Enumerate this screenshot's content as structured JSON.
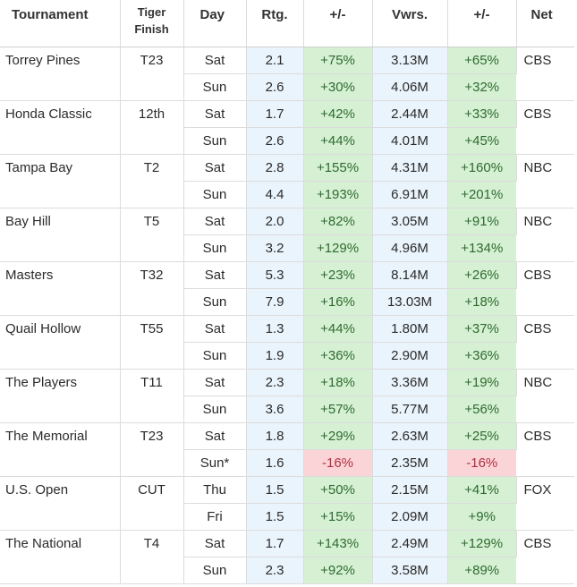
{
  "headers": {
    "tournament": "Tournament",
    "tiger_finish_line1": "Tiger",
    "tiger_finish_line2": "Finish",
    "day": "Day",
    "rating": "Rtg.",
    "rating_change": "+/-",
    "viewers": "Vwrs.",
    "viewers_change": "+/-",
    "network": "Net"
  },
  "tournaments": [
    {
      "name": "Torrey Pines",
      "finish": "T23",
      "net": "CBS",
      "days": [
        {
          "day": "Sat",
          "rating": "2.1",
          "rating_change": "+75%",
          "rating_neg": false,
          "viewers": "3.13M",
          "viewers_change": "+65%",
          "viewers_neg": false
        },
        {
          "day": "Sun",
          "rating": "2.6",
          "rating_change": "+30%",
          "rating_neg": false,
          "viewers": "4.06M",
          "viewers_change": "+32%",
          "viewers_neg": false
        }
      ]
    },
    {
      "name": "Honda Classic",
      "finish": "12th",
      "net": "CBS",
      "days": [
        {
          "day": "Sat",
          "rating": "1.7",
          "rating_change": "+42%",
          "rating_neg": false,
          "viewers": "2.44M",
          "viewers_change": "+33%",
          "viewers_neg": false
        },
        {
          "day": "Sun",
          "rating": "2.6",
          "rating_change": "+44%",
          "rating_neg": false,
          "viewers": "4.01M",
          "viewers_change": "+45%",
          "viewers_neg": false
        }
      ]
    },
    {
      "name": "Tampa Bay",
      "finish": "T2",
      "net": "NBC",
      "days": [
        {
          "day": "Sat",
          "rating": "2.8",
          "rating_change": "+155%",
          "rating_neg": false,
          "viewers": "4.31M",
          "viewers_change": "+160%",
          "viewers_neg": false
        },
        {
          "day": "Sun",
          "rating": "4.4",
          "rating_change": "+193%",
          "rating_neg": false,
          "viewers": "6.91M",
          "viewers_change": "+201%",
          "viewers_neg": false
        }
      ]
    },
    {
      "name": "Bay Hill",
      "finish": "T5",
      "net": "NBC",
      "days": [
        {
          "day": "Sat",
          "rating": "2.0",
          "rating_change": "+82%",
          "rating_neg": false,
          "viewers": "3.05M",
          "viewers_change": "+91%",
          "viewers_neg": false
        },
        {
          "day": "Sun",
          "rating": "3.2",
          "rating_change": "+129%",
          "rating_neg": false,
          "viewers": "4.96M",
          "viewers_change": "+134%",
          "viewers_neg": false
        }
      ]
    },
    {
      "name": "Masters",
      "finish": "T32",
      "net": "CBS",
      "days": [
        {
          "day": "Sat",
          "rating": "5.3",
          "rating_change": "+23%",
          "rating_neg": false,
          "viewers": "8.14M",
          "viewers_change": "+26%",
          "viewers_neg": false
        },
        {
          "day": "Sun",
          "rating": "7.9",
          "rating_change": "+16%",
          "rating_neg": false,
          "viewers": "13.03M",
          "viewers_change": "+18%",
          "viewers_neg": false
        }
      ]
    },
    {
      "name": "Quail Hollow",
      "finish": "T55",
      "net": "CBS",
      "days": [
        {
          "day": "Sat",
          "rating": "1.3",
          "rating_change": "+44%",
          "rating_neg": false,
          "viewers": "1.80M",
          "viewers_change": "+37%",
          "viewers_neg": false
        },
        {
          "day": "Sun",
          "rating": "1.9",
          "rating_change": "+36%",
          "rating_neg": false,
          "viewers": "2.90M",
          "viewers_change": "+36%",
          "viewers_neg": false
        }
      ]
    },
    {
      "name": "The Players",
      "finish": "T11",
      "net": "NBC",
      "days": [
        {
          "day": "Sat",
          "rating": "2.3",
          "rating_change": "+18%",
          "rating_neg": false,
          "viewers": "3.36M",
          "viewers_change": "+19%",
          "viewers_neg": false
        },
        {
          "day": "Sun",
          "rating": "3.6",
          "rating_change": "+57%",
          "rating_neg": false,
          "viewers": "5.77M",
          "viewers_change": "+56%",
          "viewers_neg": false
        }
      ]
    },
    {
      "name": "The Memorial",
      "finish": "T23",
      "net": "CBS",
      "days": [
        {
          "day": "Sat",
          "rating": "1.8",
          "rating_change": "+29%",
          "rating_neg": false,
          "viewers": "2.63M",
          "viewers_change": "+25%",
          "viewers_neg": false
        },
        {
          "day": "Sun*",
          "rating": "1.6",
          "rating_change": "-16%",
          "rating_neg": true,
          "viewers": "2.35M",
          "viewers_change": "-16%",
          "viewers_neg": true
        }
      ]
    },
    {
      "name": "U.S. Open",
      "finish": "CUT",
      "net": "FOX",
      "days": [
        {
          "day": "Thu",
          "rating": "1.5",
          "rating_change": "+50%",
          "rating_neg": false,
          "viewers": "2.15M",
          "viewers_change": "+41%",
          "viewers_neg": false
        },
        {
          "day": "Fri",
          "rating": "1.5",
          "rating_change": "+15%",
          "rating_neg": false,
          "viewers": "2.09M",
          "viewers_change": "+9%",
          "viewers_neg": false
        }
      ]
    },
    {
      "name": "The National",
      "finish": "T4",
      "net": "CBS",
      "days": [
        {
          "day": "Sat",
          "rating": "1.7",
          "rating_change": "+143%",
          "rating_neg": false,
          "viewers": "2.49M",
          "viewers_change": "+129%",
          "viewers_neg": false
        },
        {
          "day": "Sun",
          "rating": "2.3",
          "rating_change": "+92%",
          "rating_neg": false,
          "viewers": "3.58M",
          "viewers_change": "+89%",
          "viewers_neg": false
        }
      ]
    }
  ],
  "colors": {
    "positive_bg": "#d6f0d4",
    "negative_bg": "#fbd4d8",
    "rating_bg": "#eaf4fc"
  }
}
